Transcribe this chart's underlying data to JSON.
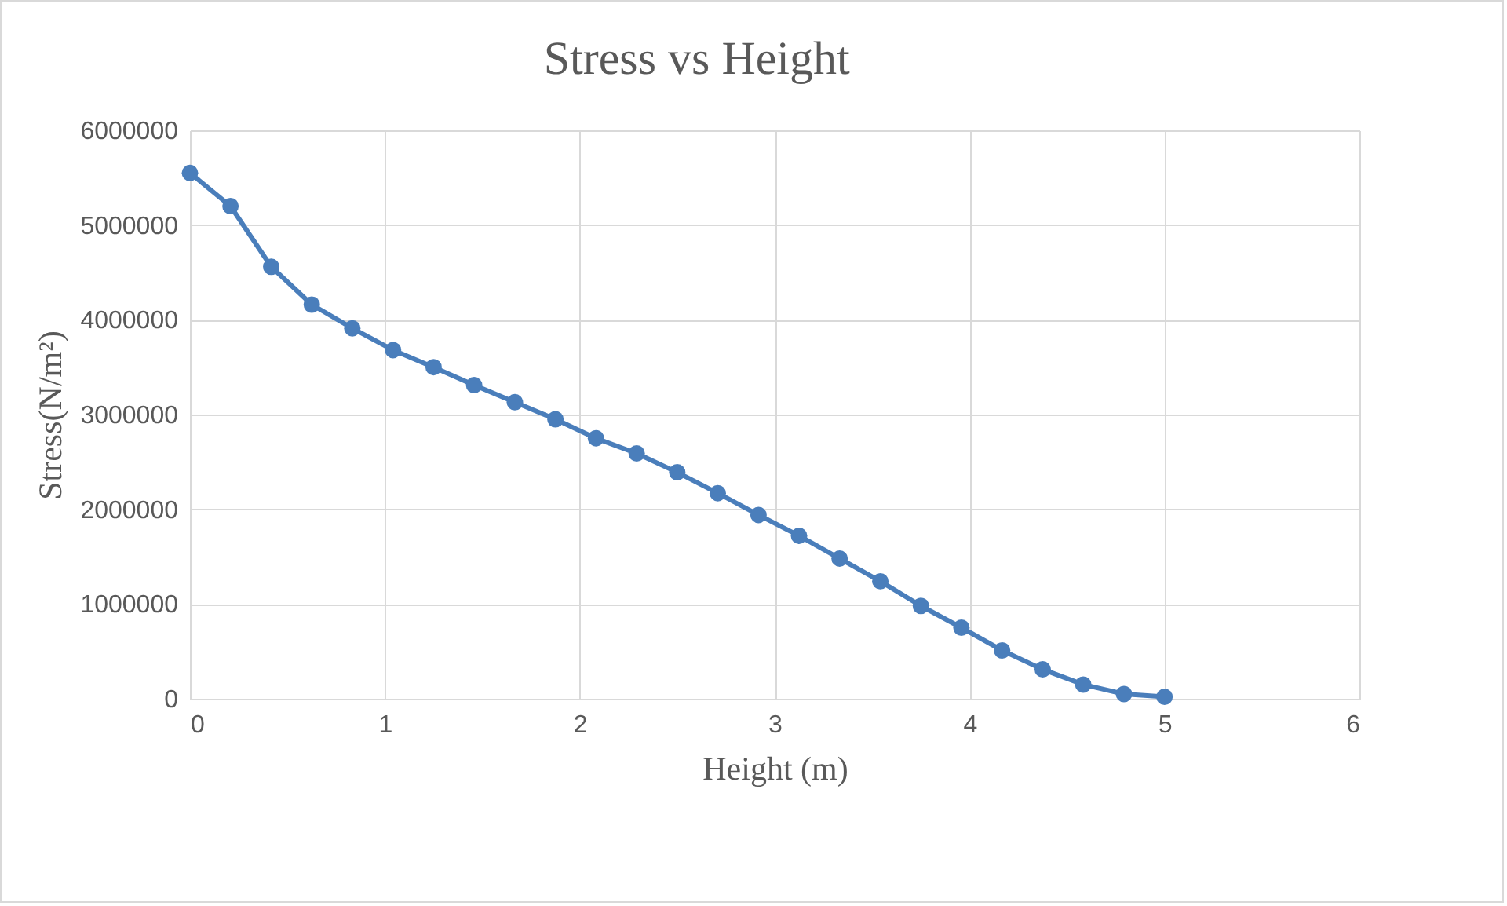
{
  "chart_data": {
    "type": "line",
    "title": "Stress vs Height",
    "xlabel": "Height (m)",
    "ylabel": "Stress(N/m²)",
    "x": [
      0,
      0.208,
      0.417,
      0.625,
      0.833,
      1.042,
      1.25,
      1.458,
      1.667,
      1.875,
      2.083,
      2.292,
      2.5,
      2.708,
      2.917,
      3.125,
      3.333,
      3.542,
      3.75,
      3.958,
      4.167,
      4.375,
      4.583,
      4.792,
      5
    ],
    "series": [
      {
        "color": "#4a7ebb",
        "values": [
          5550000,
          5200000,
          4560000,
          4160000,
          3910000,
          3680000,
          3500000,
          3310000,
          3130000,
          2950000,
          2750000,
          2590000,
          2390000,
          2170000,
          1940000,
          1720000,
          1480000,
          1240000,
          980000,
          750000,
          510000,
          310000,
          150000,
          50000,
          20000
        ]
      }
    ],
    "xlim": [
      0,
      6
    ],
    "xticks": [
      0,
      1,
      2,
      3,
      4,
      5,
      6
    ],
    "ylim": [
      0,
      6000000
    ],
    "yticks": [
      0,
      1000000,
      2000000,
      3000000,
      4000000,
      5000000,
      6000000
    ],
    "grid": true,
    "marker": "circle",
    "line_style": "solid"
  }
}
